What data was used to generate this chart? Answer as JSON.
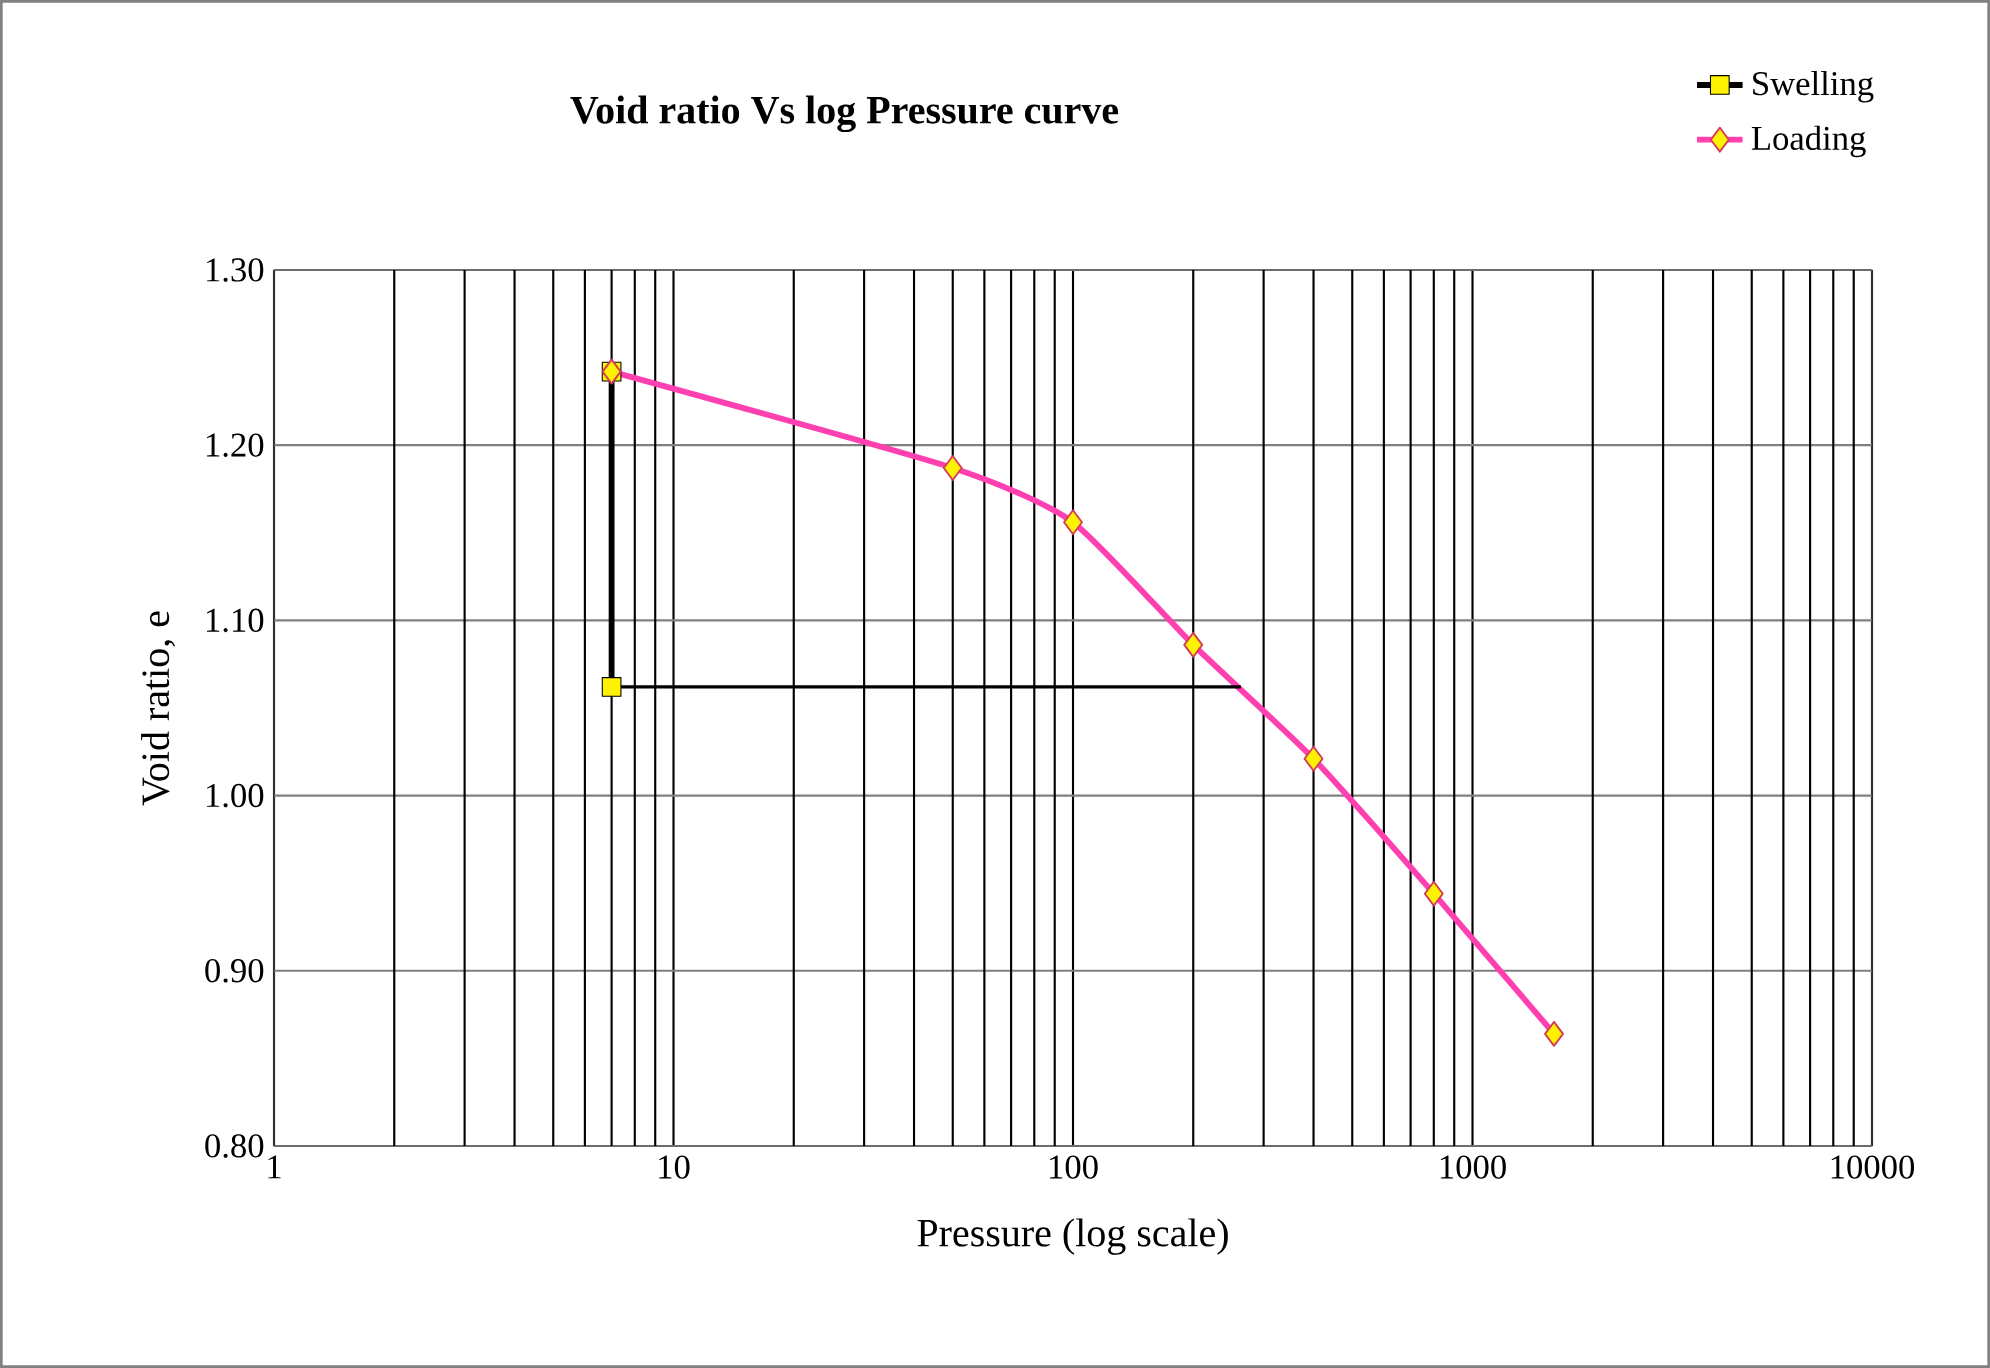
{
  "chart_data": {
    "type": "line",
    "title": "Void ratio Vs log Pressure curve",
    "xlabel": "Pressure (log scale)",
    "ylabel": "Void ratio, e",
    "log": "x",
    "xlim": [
      1,
      10000
    ],
    "xticks": [
      1,
      {
        "value": 2,
        "label": null
      },
      {
        "value": 3,
        "label": null
      },
      {
        "value": 4,
        "label": null
      },
      {
        "value": 5,
        "label": null
      },
      {
        "value": 6,
        "label": null
      },
      {
        "value": 7,
        "label": null
      },
      {
        "value": 8,
        "label": null
      },
      {
        "value": 9,
        "label": null
      },
      10,
      {
        "value": 20,
        "label": null
      },
      {
        "value": 30,
        "label": null
      },
      {
        "value": 40,
        "label": null
      },
      {
        "value": 50,
        "label": null
      },
      {
        "value": 60,
        "label": null
      },
      {
        "value": 70,
        "label": null
      },
      {
        "value": 80,
        "label": null
      },
      {
        "value": 90,
        "label": null
      },
      100,
      {
        "value": 200,
        "label": null
      },
      {
        "value": 300,
        "label": null
      },
      {
        "value": 400,
        "label": null
      },
      {
        "value": 500,
        "label": null
      },
      {
        "value": 600,
        "label": null
      },
      {
        "value": 700,
        "label": null
      },
      {
        "value": 800,
        "label": null
      },
      {
        "value": 900,
        "label": null
      },
      1000,
      {
        "value": 2000,
        "label": null
      },
      {
        "value": 3000,
        "label": null
      },
      {
        "value": 4000,
        "label": null
      },
      {
        "value": 5000,
        "label": null
      },
      {
        "value": 6000,
        "label": null
      },
      {
        "value": 7000,
        "label": null
      },
      {
        "value": 8000,
        "label": null
      },
      {
        "value": 9000,
        "label": null
      },
      10000
    ],
    "ylim": [
      0.8,
      1.3
    ],
    "yticks": [
      {
        "value": 0.8,
        "label": "0.80"
      },
      {
        "value": 0.9,
        "label": "0.90"
      },
      {
        "value": 1.0,
        "label": "1.00"
      },
      {
        "value": 1.1,
        "label": "1.10"
      },
      {
        "value": 1.2,
        "label": "1.20"
      },
      {
        "value": 1.3,
        "label": "1.30"
      }
    ],
    "grid": true,
    "legend": "top right",
    "series": [
      {
        "name": "Swelling",
        "color": "#000000",
        "marker": "square",
        "x": [
          7,
          7
        ],
        "values": [
          1.242,
          1.062
        ]
      },
      {
        "name": "Loading",
        "color": "#ff40b0",
        "marker": "diamond",
        "x": [
          7,
          50,
          100,
          200,
          400,
          800,
          1600
        ],
        "values": [
          1.242,
          1.187,
          1.156,
          1.086,
          1.021,
          0.944,
          0.864
        ]
      },
      {
        "color": "#000000",
        "marker": "none",
        "x": [
          7,
          263
        ],
        "values": [
          1.062,
          1.062
        ]
      }
    ]
  }
}
